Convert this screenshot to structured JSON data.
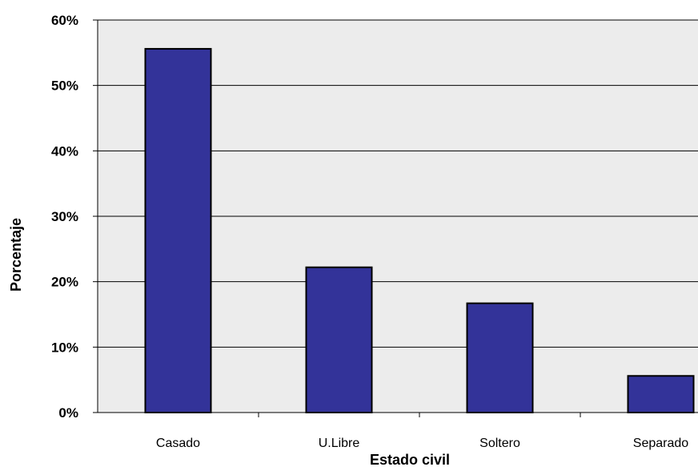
{
  "chart_data": {
    "type": "bar",
    "title": "",
    "xlabel": "Estado civil",
    "ylabel": "Porcentaje",
    "categories": [
      "Casado",
      "U.Libre",
      "Soltero",
      "Separado"
    ],
    "values": [
      55.6,
      22.2,
      16.7,
      5.6
    ],
    "ylim": [
      0,
      60
    ],
    "yticks": [
      0,
      10,
      20,
      30,
      40,
      50,
      60
    ],
    "ytick_labels": [
      "0%",
      "10%",
      "20%",
      "30%",
      "40%",
      "50%",
      "60%"
    ],
    "grid": "horizontal",
    "legend": "none",
    "colors": {
      "bar_fill": "#333399",
      "bar_stroke": "#000000",
      "plot_background": "#ececec",
      "gridline": "#000000"
    }
  }
}
